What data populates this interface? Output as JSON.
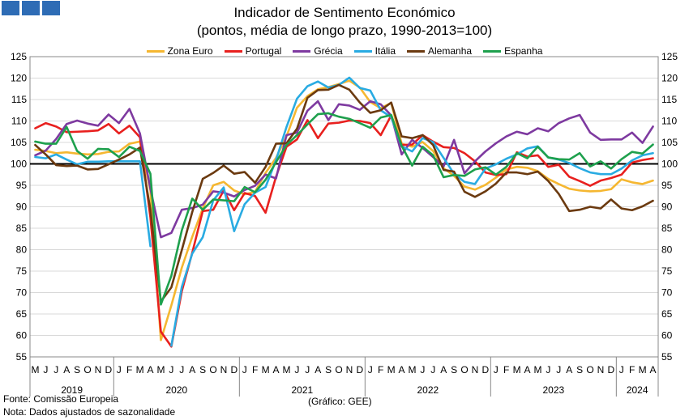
{
  "header": {
    "title": "Indicador de Sentimento Económico",
    "subtitle": "(pontos, média de longo prazo, 1990-2013=100)"
  },
  "footer": {
    "source": "Fonte: Comissão Europeia",
    "note": "Nota: Dados ajustados de sazonalidade",
    "credit": "(Gráfico: GEE)"
  },
  "colors": {
    "logo": "#2e6cb5",
    "reference_line": "#000000"
  },
  "chart_data": {
    "type": "line",
    "ylim": [
      55,
      125
    ],
    "yticks": [
      55,
      60,
      65,
      70,
      75,
      80,
      85,
      90,
      95,
      100,
      105,
      110,
      115,
      120,
      125
    ],
    "reference_line": 100,
    "grid": "horizontal",
    "legend_position": "top",
    "month_labels": [
      "M",
      "J",
      "J",
      "A",
      "S",
      "O",
      "N",
      "D",
      "J",
      "F",
      "M",
      "A",
      "M",
      "J",
      "J",
      "A",
      "S",
      "O",
      "N",
      "D",
      "J",
      "F",
      "M",
      "A",
      "M",
      "J",
      "J",
      "A",
      "S",
      "O",
      "N",
      "D",
      "J",
      "F",
      "M",
      "A",
      "M",
      "J",
      "J",
      "A",
      "S",
      "O",
      "N",
      "D",
      "J",
      "F",
      "M",
      "A",
      "M",
      "J",
      "J",
      "A",
      "S",
      "O",
      "N",
      "D",
      "J",
      "F",
      "M",
      "A"
    ],
    "years": [
      {
        "label": "2019",
        "start": 0,
        "end": 7
      },
      {
        "label": "2020",
        "start": 8,
        "end": 19
      },
      {
        "label": "2021",
        "start": 20,
        "end": 31
      },
      {
        "label": "2022",
        "start": 32,
        "end": 43
      },
      {
        "label": "2023",
        "start": 44,
        "end": 55
      },
      {
        "label": "2024",
        "start": 56,
        "end": 59
      }
    ],
    "series": [
      {
        "name": "Zona Euro",
        "color": "#f5b731",
        "values": [
          103.3,
          103.0,
          102.5,
          102.7,
          102.4,
          102.2,
          102.3,
          102.8,
          102.9,
          104.7,
          105.2,
          93.8,
          58.9,
          67.0,
          75.8,
          83.0,
          89.6,
          95.0,
          95.8,
          93.8,
          92.9,
          93.5,
          97.9,
          101.4,
          106.4,
          113.1,
          115.8,
          117.4,
          117.9,
          118.6,
          119.4,
          117.8,
          114.4,
          113.0,
          114.2,
          104.7,
          104.0,
          105.1,
          103.0,
          99.0,
          97.2,
          94.7,
          94.0,
          95.1,
          96.8,
          98.7,
          99.3,
          99.1,
          98.3,
          96.5,
          95.3,
          94.2,
          93.8,
          93.6,
          93.7,
          94.1,
          96.4,
          95.7,
          95.3,
          96.1
        ]
      },
      {
        "name": "Portugal",
        "color": "#e8201e",
        "values": [
          108.3,
          109.5,
          108.7,
          107.4,
          107.5,
          107.6,
          107.8,
          109.3,
          107.1,
          108.9,
          106.2,
          87.5,
          60.9,
          57.4,
          70.3,
          79.3,
          89.0,
          89.3,
          93.8,
          89.2,
          93.2,
          92.5,
          88.6,
          97.0,
          104.0,
          105.7,
          110.2,
          106.0,
          109.4,
          109.6,
          110.1,
          110.0,
          109.5,
          106.7,
          111.3,
          104.4,
          104.5,
          106.7,
          105.2,
          103.9,
          103.7,
          102.5,
          100.6,
          98.0,
          97.4,
          97.6,
          102.7,
          101.7,
          102.0,
          99.3,
          99.8,
          97.0,
          96.0,
          94.9,
          96.1,
          96.7,
          97.5,
          100.3,
          100.9,
          101.3
        ]
      },
      {
        "name": "Grécia",
        "color": "#7e3aa0",
        "values": [
          102.0,
          103.1,
          105.8,
          109.3,
          110.1,
          109.4,
          108.9,
          111.5,
          109.5,
          112.8,
          107.1,
          94.2,
          82.9,
          83.9,
          89.3,
          89.7,
          90.5,
          93.6,
          93.3,
          92.4,
          93.9,
          94.9,
          97.5,
          96.6,
          106.7,
          107.3,
          112.4,
          114.6,
          110.2,
          113.9,
          113.6,
          112.6,
          114.6,
          113.9,
          111.3,
          102.2,
          105.6,
          103.7,
          101.6,
          99.4,
          105.6,
          97.8,
          100.6,
          102.9,
          104.8,
          106.4,
          107.5,
          106.9,
          108.3,
          107.6,
          109.5,
          110.6,
          111.4,
          107.3,
          105.6,
          105.7,
          105.7,
          107.3,
          104.9,
          108.7
        ]
      },
      {
        "name": "Itália",
        "color": "#29abe2",
        "values": [
          101.6,
          101.3,
          102.2,
          101.0,
          99.9,
          100.5,
          100.5,
          100.6,
          100.6,
          100.6,
          100.6,
          80.8,
          null,
          57.6,
          71.3,
          79.1,
          82.9,
          91.5,
          94.5,
          84.3,
          90.6,
          93.3,
          94.6,
          100.9,
          108.6,
          115.2,
          118.1,
          119.2,
          117.8,
          118.4,
          120.1,
          117.7,
          117.1,
          112.5,
          110.9,
          104.1,
          102.9,
          106.0,
          105.1,
          101.4,
          97.7,
          95.8,
          95.3,
          98.9,
          99.9,
          101.2,
          102.2,
          103.6,
          104.1,
          101.5,
          101.0,
          100.2,
          99.0,
          98.0,
          97.6,
          97.6,
          98.9,
          100.8,
          102.0,
          102.5
        ]
      },
      {
        "name": "Alemanha",
        "color": "#6b3a10",
        "values": [
          104.4,
          102.2,
          99.7,
          99.5,
          99.6,
          98.7,
          98.8,
          99.9,
          101.0,
          102.2,
          103.8,
          89.3,
          67.9,
          71.2,
          79.9,
          88.8,
          96.5,
          97.9,
          99.6,
          97.7,
          98.1,
          95.6,
          99.3,
          104.7,
          104.8,
          108.2,
          115.4,
          117.2,
          117.3,
          118.4,
          117.3,
          114.3,
          111.9,
          112.5,
          114.3,
          106.4,
          106.0,
          106.7,
          104.4,
          98.6,
          98.2,
          93.5,
          92.3,
          93.6,
          95.4,
          98.0,
          98.0,
          97.6,
          98.2,
          96.0,
          93.0,
          89.0,
          89.3,
          90.0,
          89.6,
          91.7,
          89.6,
          89.2,
          90.1,
          91.4
        ]
      },
      {
        "name": "Espanha",
        "color": "#1ea04d",
        "values": [
          105.2,
          104.7,
          104.7,
          108.6,
          103.0,
          101.2,
          103.5,
          103.4,
          101.6,
          104.0,
          103.0,
          97.7,
          67.2,
          73.9,
          84.5,
          91.9,
          89.3,
          91.7,
          91.5,
          91.3,
          94.6,
          93.4,
          96.3,
          100.4,
          104.4,
          106.7,
          109.2,
          111.6,
          111.8,
          111.0,
          110.5,
          109.5,
          108.4,
          110.8,
          111.4,
          104.2,
          99.6,
          104.0,
          102.0,
          96.9,
          97.4,
          97.2,
          98.7,
          99.2,
          97.5,
          99.3,
          102.5,
          101.3,
          104.0,
          101.5,
          101.1,
          101.0,
          102.5,
          99.4,
          100.6,
          98.9,
          101.1,
          102.8,
          102.4,
          104.5
        ]
      }
    ]
  }
}
